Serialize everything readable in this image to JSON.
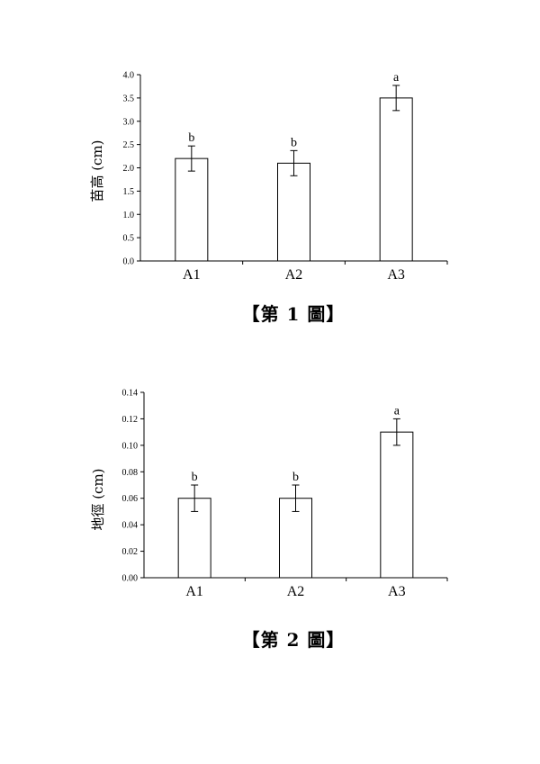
{
  "chart_data": [
    {
      "type": "bar",
      "categories": [
        "A1",
        "A2",
        "A3"
      ],
      "values": [
        2.2,
        2.1,
        3.5
      ],
      "error": [
        0.27,
        0.27,
        0.27
      ],
      "significance": [
        "b",
        "b",
        "a"
      ],
      "ylabel": "苗高 (cm)",
      "xlabel": "",
      "ylim": [
        0,
        4.0
      ],
      "yticks": [
        "0.0",
        "0.5",
        "1.0",
        "1.5",
        "2.0",
        "2.5",
        "3.0",
        "3.5",
        "4.0"
      ],
      "grid": false,
      "caption": "【第 1 圖】"
    },
    {
      "type": "bar",
      "categories": [
        "A1",
        "A2",
        "A3"
      ],
      "values": [
        0.06,
        0.06,
        0.11
      ],
      "error": [
        0.01,
        0.01,
        0.01
      ],
      "significance": [
        "b",
        "b",
        "a"
      ],
      "ylabel": "地徑 (cm)",
      "xlabel": "",
      "ylim": [
        0,
        0.14
      ],
      "yticks": [
        "0.00",
        "0.02",
        "0.04",
        "0.06",
        "0.08",
        "0.10",
        "0.12",
        "0.14"
      ],
      "grid": false,
      "caption": "【第 2 圖】"
    }
  ]
}
